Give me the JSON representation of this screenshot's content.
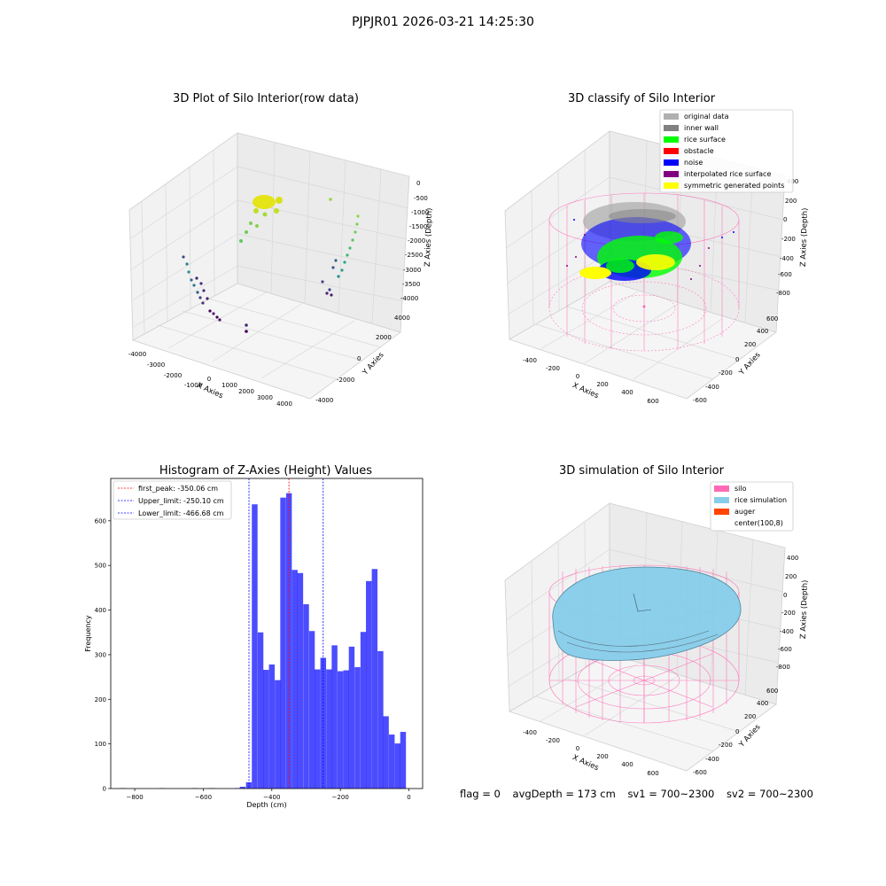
{
  "figure": {
    "suptitle": "PJPJR01 2026-03-21 14:25:30",
    "status": {
      "flag": "flag = 0",
      "avg_depth": "avgDepth = 173 cm",
      "sv1": "sv1 = 700~2300",
      "sv2": "sv2 = 700~2300"
    }
  },
  "plot1": {
    "title": "3D Plot of Silo Interior(row data)",
    "xlabel": "X Axies",
    "ylabel": "Y Axies",
    "zlabel": "Z Axies (Depth)",
    "xticks": [
      "-4000",
      "-3000",
      "-2000",
      "-1000",
      "0",
      "1000",
      "2000",
      "3000",
      "4000"
    ],
    "yticks": [
      "-4000",
      "-2000",
      "0",
      "2000",
      "4000"
    ],
    "zticks": [
      "0",
      "-500",
      "-1000",
      "-1500",
      "-2000",
      "-2500",
      "-3000",
      "-3500",
      "-4000"
    ]
  },
  "plot2": {
    "title": "3D classify of Silo Interior",
    "xlabel": "X Axies",
    "ylabel": "Y Axies",
    "zlabel": "Z Axies (Depth)",
    "xticks": [
      "-400",
      "-200",
      "0",
      "200",
      "400",
      "600"
    ],
    "yticks": [
      "-600",
      "-400",
      "-200",
      "0",
      "200",
      "400",
      "600"
    ],
    "zticks": [
      "400",
      "200",
      "0",
      "-200",
      "-400",
      "-600",
      "-800"
    ],
    "legend": [
      {
        "label": "original data",
        "color": "#b0b0b0"
      },
      {
        "label": "inner wall",
        "color": "#808080"
      },
      {
        "label": "rice surface",
        "color": "#00ff00"
      },
      {
        "label": "obstacle",
        "color": "#ff0000"
      },
      {
        "label": "noise",
        "color": "#0000ff"
      },
      {
        "label": "interpolated rice surface",
        "color": "#800080"
      },
      {
        "label": "symmetric generated points",
        "color": "#ffff00"
      }
    ]
  },
  "plot3": {
    "title": "3D simulation of Silo Interior",
    "xlabel": "X Axies",
    "ylabel": "Y Axies",
    "zlabel": "Z Axies (Depth)",
    "xticks": [
      "-400",
      "-200",
      "0",
      "200",
      "400",
      "600"
    ],
    "yticks": [
      "-600",
      "-400",
      "-200",
      "0",
      "200",
      "400",
      "600"
    ],
    "zticks": [
      "400",
      "200",
      "0",
      "-200",
      "-400",
      "-600",
      "-800"
    ],
    "legend": [
      {
        "label": "silo",
        "color": "#ff69b4"
      },
      {
        "label": "rice simulation",
        "color": "#87ceeb"
      },
      {
        "label": "auger",
        "color": "#ff4500"
      },
      {
        "label": "center(100,8)",
        "color": "#ffffff"
      }
    ]
  },
  "chart_data": {
    "type": "bar",
    "title": "Histogram of Z-Axies (Height) Values",
    "xlabel": "Depth (cm)",
    "ylabel": "Frequency",
    "xlim": [
      -870,
      40
    ],
    "ylim": [
      0,
      695
    ],
    "xticks": [
      -800,
      -600,
      -400,
      -200,
      0
    ],
    "yticks": [
      0,
      100,
      200,
      300,
      400,
      500,
      600
    ],
    "bar_color": "#0000ff",
    "bin_width": 16.7,
    "bins": [
      {
        "x": -835,
        "v": 1
      },
      {
        "x": -720,
        "v": 1
      },
      {
        "x": -625,
        "v": 1
      },
      {
        "x": -575,
        "v": 1
      },
      {
        "x": -500,
        "v": 1
      },
      {
        "x": -485,
        "v": 4
      },
      {
        "x": -467,
        "v": 14
      },
      {
        "x": -450,
        "v": 637
      },
      {
        "x": -433,
        "v": 350
      },
      {
        "x": -417,
        "v": 266
      },
      {
        "x": -400,
        "v": 278
      },
      {
        "x": -383,
        "v": 243
      },
      {
        "x": -367,
        "v": 652
      },
      {
        "x": -350,
        "v": 662
      },
      {
        "x": -333,
        "v": 490
      },
      {
        "x": -317,
        "v": 483
      },
      {
        "x": -300,
        "v": 413
      },
      {
        "x": -283,
        "v": 353
      },
      {
        "x": -267,
        "v": 267
      },
      {
        "x": -250,
        "v": 293
      },
      {
        "x": -233,
        "v": 267
      },
      {
        "x": -217,
        "v": 321
      },
      {
        "x": -200,
        "v": 263
      },
      {
        "x": -183,
        "v": 265
      },
      {
        "x": -167,
        "v": 318
      },
      {
        "x": -150,
        "v": 272
      },
      {
        "x": -133,
        "v": 351
      },
      {
        "x": -117,
        "v": 465
      },
      {
        "x": -100,
        "v": 492
      },
      {
        "x": -83,
        "v": 308
      },
      {
        "x": -67,
        "v": 162
      },
      {
        "x": -50,
        "v": 121
      },
      {
        "x": -33,
        "v": 101
      },
      {
        "x": -17,
        "v": 127
      }
    ],
    "lines": [
      {
        "name": "first_peak: -350.06 cm",
        "x": -350.06,
        "color": "#ff0000"
      },
      {
        "name": "Upper_limit: -250.10 cm",
        "x": -250.1,
        "color": "#0000ff"
      },
      {
        "name": "Lower_limit: -466.68 cm",
        "x": -466.68,
        "color": "#0000ff"
      }
    ],
    "legend_position": "upper left"
  }
}
